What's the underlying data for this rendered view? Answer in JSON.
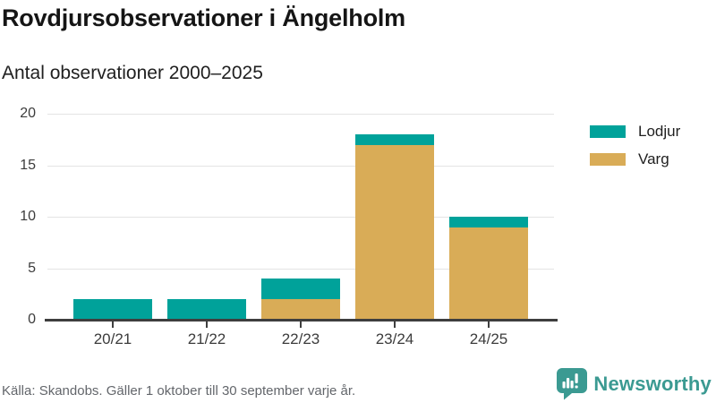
{
  "header": {
    "title": "Rovdjursobservationer i Ängelholm",
    "subtitle": "Antal observationer 2000–2025"
  },
  "chart_data": {
    "type": "bar",
    "stacked": true,
    "title": "Rovdjursobservationer i Ängelholm",
    "subtitle": "Antal observationer 2000–2025",
    "categories": [
      "20/21",
      "21/22",
      "22/23",
      "23/24",
      "24/25"
    ],
    "series": [
      {
        "name": "Varg",
        "color": "#d9ac57",
        "values": [
          0,
          0,
          2,
          17,
          9
        ]
      },
      {
        "name": "Lodjur",
        "color": "#00a29a",
        "values": [
          2,
          2,
          2,
          1,
          1
        ]
      }
    ],
    "totals": [
      2,
      2,
      4,
      18,
      10
    ],
    "xlabel": "",
    "ylabel": "",
    "ylim": [
      0,
      20
    ],
    "yticks": [
      0,
      5,
      10,
      15,
      20
    ],
    "grid": true,
    "legend": {
      "position": "right",
      "entries": [
        "Lodjur",
        "Varg"
      ]
    }
  },
  "footer": {
    "source": "Källa: Skandobs. Gäller 1 oktober till 30 september varje år.",
    "brand": "Newsworthy"
  },
  "colors": {
    "lodjur": "#00a29a",
    "varg": "#d9ac57",
    "axis": "#3e3e3e",
    "gridline": "#e4e4e4",
    "brand_teal": "#3b9a92",
    "text_dark": "#151515",
    "text_muted": "#63666b"
  }
}
